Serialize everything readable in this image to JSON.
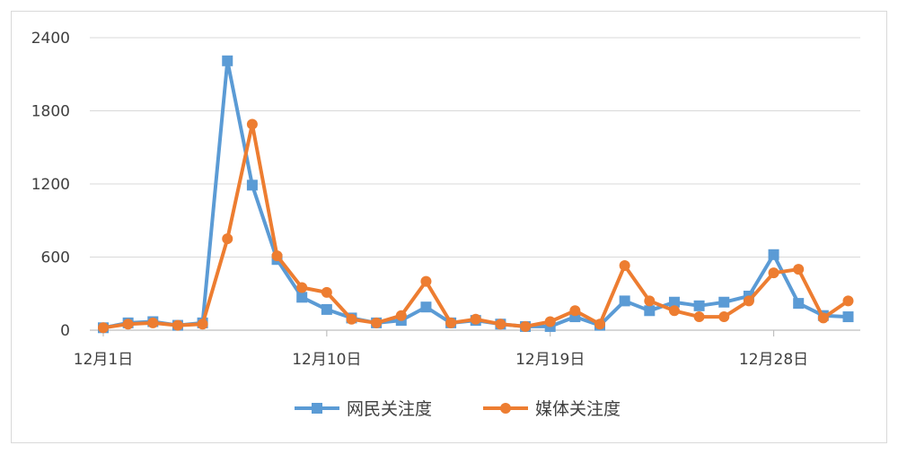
{
  "chart_data": {
    "type": "line",
    "title": "",
    "xlabel": "",
    "ylabel": "",
    "ylim": [
      0,
      2400
    ],
    "yticks": [
      0,
      600,
      1200,
      1800,
      2400
    ],
    "x_tick_labels": [
      "12月1日",
      "12月10日",
      "12月19日",
      "12月28日"
    ],
    "x_tick_index": [
      0,
      9,
      18,
      27
    ],
    "grid": true,
    "legend_position": "bottom",
    "x": [
      1,
      2,
      3,
      4,
      5,
      6,
      7,
      8,
      9,
      10,
      11,
      12,
      13,
      14,
      15,
      16,
      17,
      18,
      19,
      20,
      21,
      22,
      23,
      24,
      25,
      26,
      27,
      28,
      29,
      30,
      31
    ],
    "series": [
      {
        "name": "网民关注度",
        "color": "#5B9BD5",
        "marker": "square",
        "values": [
          20,
          60,
          70,
          40,
          60,
          2210,
          1190,
          580,
          270,
          170,
          100,
          60,
          80,
          190,
          60,
          80,
          50,
          30,
          30,
          110,
          40,
          240,
          160,
          230,
          200,
          230,
          280,
          620,
          220,
          120,
          110
        ]
      },
      {
        "name": "媒体关注度",
        "color": "#ED7D31",
        "marker": "circle",
        "values": [
          20,
          50,
          60,
          40,
          50,
          750,
          1690,
          610,
          350,
          310,
          90,
          60,
          120,
          400,
          60,
          90,
          50,
          30,
          70,
          160,
          50,
          530,
          240,
          160,
          110,
          110,
          240,
          470,
          500,
          100,
          240
        ]
      }
    ]
  }
}
